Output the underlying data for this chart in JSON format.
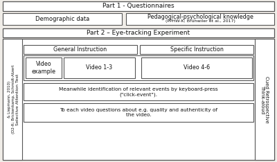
{
  "bg_color": "#f0ede8",
  "box_color": "#ffffff",
  "border_color": "#555555",
  "text_color": "#111111",
  "fig_bg": "#f0ede8",
  "part1_title": "Part 1 - Questionnaires",
  "demo_label": "Demographic data",
  "ppk_line1": "Pedagogical-psychological knowledge",
  "ppk_line2": "(PPHW-K; Brühwiler et al., 2017)",
  "part2_title": "Part 2 – Eye-tracking Experiment",
  "gen_instr": "General Instruction",
  "spec_instr": "Specific Instruction",
  "vid_ex": "Video\nexample",
  "vid13": "Video 1-3",
  "vid46": "Video 4-6",
  "click_line1": "Meanwhile identification of relevant events by keyboard-press",
  "click_line2": "(\"click-event\").",
  "question_line1": "To each video questions about e.g. quality and authenticity of",
  "question_line2": "the video.",
  "left_line1": "Selective Attention Test",
  "left_line2": "(D2-R; Brickenkamp, Schmidt-Atzert",
  "left_line3": "& Liepmann, 2010)",
  "right_line1": "Cued Retrospective",
  "right_line2": "Think-aloud"
}
